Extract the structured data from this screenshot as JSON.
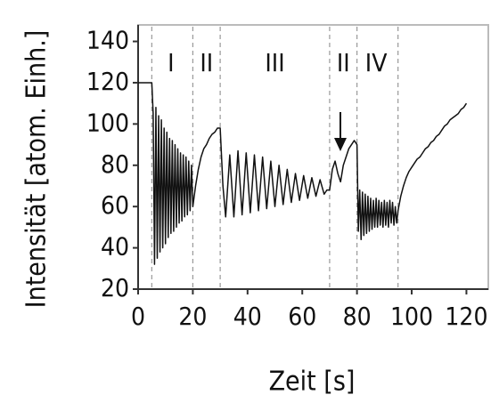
{
  "chart_data": {
    "type": "line",
    "x_label": "Zeit [s]",
    "y_label": "Intensität [atom. Einh.]",
    "color": "#111111",
    "xlim": [
      0,
      128
    ],
    "xticks": [
      0,
      20,
      40,
      60,
      80,
      100,
      120
    ],
    "ylim": [
      20,
      148
    ],
    "yticks": [
      20,
      40,
      60,
      80,
      100,
      120,
      140
    ],
    "boundaries": [
      5,
      20,
      30,
      70,
      80,
      95
    ],
    "regions": [
      {
        "label": "I",
        "x": 12
      },
      {
        "label": "II",
        "x": 25
      },
      {
        "label": "III",
        "x": 50
      },
      {
        "label": "II",
        "x": 75
      },
      {
        "label": "IV",
        "x": 87
      }
    ],
    "x": [
      0,
      5,
      5.5,
      6,
      6.5,
      7,
      7.5,
      8,
      8.5,
      9,
      9.5,
      10,
      10.5,
      11,
      11.5,
      12,
      12.5,
      13,
      13.5,
      14,
      14.5,
      15,
      15.5,
      16,
      16.5,
      17,
      17.5,
      18,
      18.5,
      19,
      19.5,
      20,
      21,
      22,
      23,
      24,
      25,
      26,
      27,
      28,
      29,
      30,
      31,
      32,
      33.5,
      35,
      36.5,
      38,
      39.5,
      41,
      42.5,
      44,
      45.5,
      47,
      48.5,
      50,
      51.5,
      53,
      54.5,
      56,
      57.5,
      59,
      60.5,
      62,
      63.5,
      65,
      66.5,
      68,
      69,
      70,
      71,
      72,
      73,
      74,
      75,
      76,
      77,
      78,
      79,
      80,
      80.5,
      81,
      81.5,
      82,
      82.5,
      83,
      83.5,
      84,
      84.5,
      85,
      85.5,
      86,
      86.5,
      87,
      87.5,
      88,
      88.5,
      89,
      89.5,
      90,
      90.5,
      91,
      91.5,
      92,
      92.5,
      93,
      93.5,
      94,
      94.5,
      95,
      96,
      97,
      98,
      99,
      100,
      101,
      102,
      103,
      104,
      105,
      106,
      107,
      108,
      109,
      110,
      111,
      112,
      113,
      114,
      115,
      116,
      117,
      118,
      119,
      120
    ],
    "values": [
      120,
      120,
      105,
      32,
      108,
      35,
      104,
      38,
      102,
      40,
      98,
      42,
      96,
      45,
      93,
      47,
      92,
      48,
      90,
      50,
      88,
      52,
      86,
      53,
      85,
      55,
      84,
      56,
      82,
      58,
      80,
      60,
      70,
      78,
      84,
      88,
      90,
      93,
      95,
      96,
      98,
      98,
      70,
      55,
      85,
      55,
      87,
      56,
      86,
      57,
      85,
      58,
      84,
      59,
      82,
      60,
      80,
      61,
      78,
      62,
      76,
      63,
      75,
      64,
      74,
      65,
      73,
      66,
      68,
      68,
      78,
      82,
      76,
      72,
      80,
      84,
      88,
      90,
      92,
      90,
      48,
      68,
      44,
      67,
      46,
      66,
      47,
      65,
      48,
      64,
      49,
      63,
      50,
      64,
      50,
      63,
      51,
      62,
      50,
      63,
      51,
      62,
      50,
      63,
      52,
      62,
      51,
      60,
      52,
      58,
      65,
      70,
      74,
      77,
      79,
      81,
      83,
      84,
      86,
      88,
      89,
      91,
      92,
      94,
      95,
      97,
      99,
      100,
      102,
      103,
      104,
      105,
      107,
      108,
      110
    ]
  }
}
